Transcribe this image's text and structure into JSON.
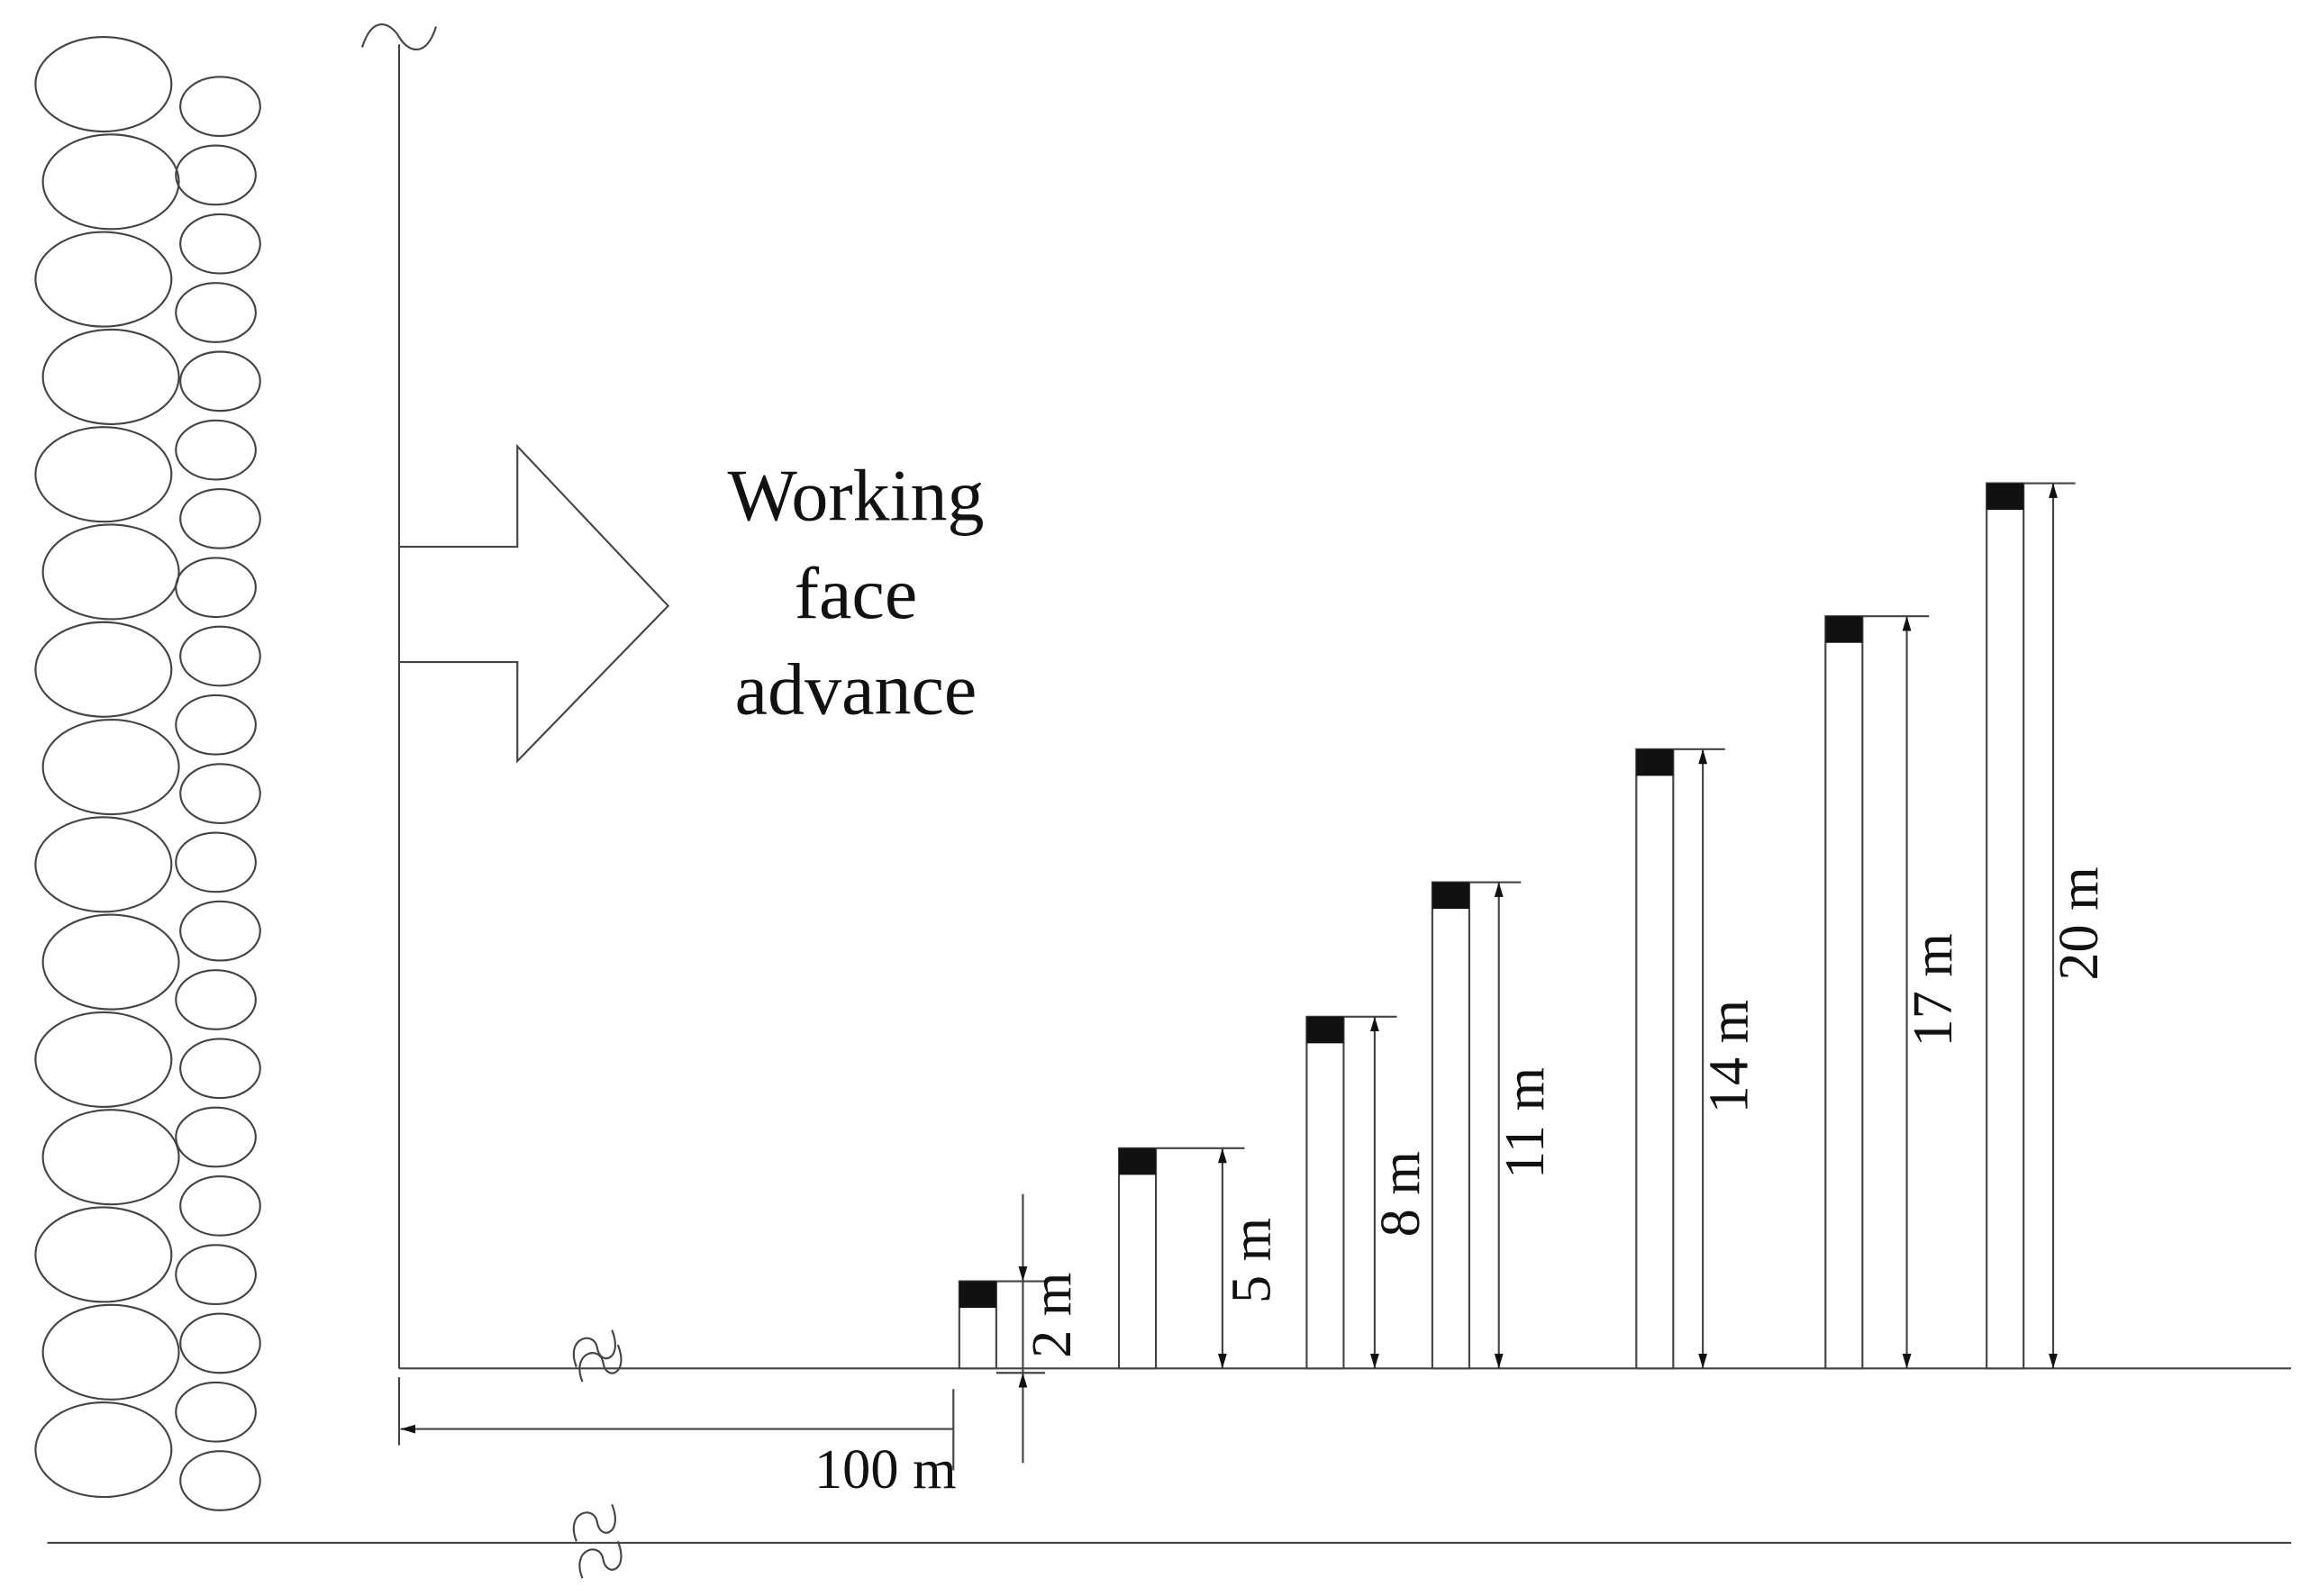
{
  "annotation": {
    "lines": [
      "Working",
      "face",
      "advance"
    ]
  },
  "heights": [
    "2 m",
    "5 m",
    "8 m",
    "11 m",
    "14 m",
    "17 m",
    "20 m"
  ],
  "distance": "100 m"
}
